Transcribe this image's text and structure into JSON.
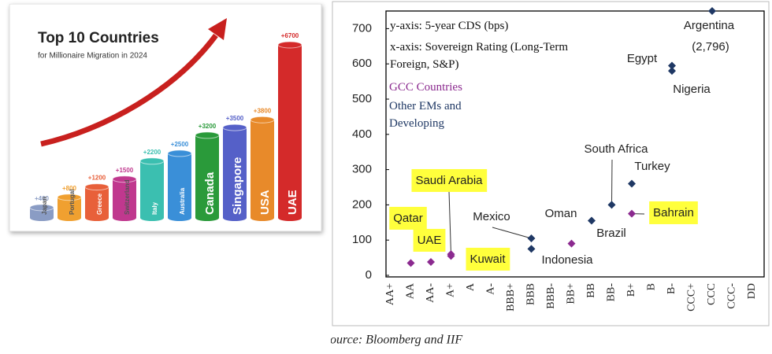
{
  "chart_data": [
    {
      "type": "bar",
      "title": "Top 10 Countries",
      "subtitle": "for Millionaire Migration in 2024",
      "categories": [
        "Japan",
        "Portugal",
        "Greece",
        "Switzerland",
        "Italy",
        "Australia",
        "Canada",
        "Singapore",
        "USA",
        "UAE"
      ],
      "values": [
        400,
        800,
        1200,
        1500,
        2200,
        2500,
        3200,
        3500,
        3800,
        6700
      ],
      "value_labels": [
        "+400",
        "+800",
        "+1200",
        "+1500",
        "+2200",
        "+2500",
        "+3200",
        "+3500",
        "+3800",
        "+6700"
      ],
      "colors": [
        "#8a9cc4",
        "#f0a030",
        "#e8603a",
        "#c0388e",
        "#3bbfb0",
        "#3a8fd8",
        "#2a9a3a",
        "#5560c8",
        "#e88a2a",
        "#d42a2a"
      ]
    },
    {
      "type": "scatter",
      "ylabel": "y-axis: 5-year CDS (bps)",
      "xlabel": "x-axis: Sovereign Rating (Long-Term Foreign, S&P)",
      "source": "Source: Bloomberg and IIF",
      "categories": [
        "AA+",
        "AA",
        "AA-",
        "A+",
        "A",
        "A-",
        "BBB+",
        "BBB",
        "BBB-",
        "BB+",
        "BB",
        "BB-",
        "B+",
        "B",
        "B-",
        "CCC+",
        "CCC",
        "CCC-",
        "DD"
      ],
      "ylim": [
        0,
        750
      ],
      "yticks": [
        0,
        100,
        200,
        300,
        400,
        500,
        600,
        700
      ],
      "grid": false,
      "series": [
        {
          "name": "GCC Countries",
          "color": "#8b2a8f",
          "points": [
            {
              "label": "Qatar",
              "x": "AA",
              "y": 35,
              "highlighted": true
            },
            {
              "label": "UAE",
              "x": "AA-",
              "y": 38,
              "highlighted": true
            },
            {
              "label": "Saudi Arabia",
              "x": "A+",
              "y": 60,
              "highlighted": true
            },
            {
              "label": "Kuwait",
              "x": "A+",
              "y": 55,
              "highlighted": true
            },
            {
              "label": "Oman",
              "x": "BB+",
              "y": 90,
              "highlighted": false
            },
            {
              "label": "Bahrain",
              "x": "B+",
              "y": 175,
              "highlighted": true
            }
          ]
        },
        {
          "name": "Other EMs and Developing",
          "color": "#1f3864",
          "points": [
            {
              "label": "Mexico",
              "x": "BBB",
              "y": 105,
              "highlighted": false
            },
            {
              "label": "Indonesia",
              "x": "BBB",
              "y": 75,
              "highlighted": false
            },
            {
              "label": "Brazil",
              "x": "BB",
              "y": 155,
              "highlighted": false
            },
            {
              "label": "South Africa",
              "x": "BB-",
              "y": 200,
              "highlighted": false
            },
            {
              "label": "Turkey",
              "x": "B+",
              "y": 260,
              "highlighted": false
            },
            {
              "label": "Egypt",
              "x": "B-",
              "y": 595,
              "highlighted": false
            },
            {
              "label": "Nigeria",
              "x": "B-",
              "y": 580,
              "highlighted": false
            },
            {
              "label": "Argentina",
              "x": "CCC",
              "y": 750,
              "highlighted": false,
              "note": "(2,796)"
            }
          ]
        }
      ]
    }
  ]
}
